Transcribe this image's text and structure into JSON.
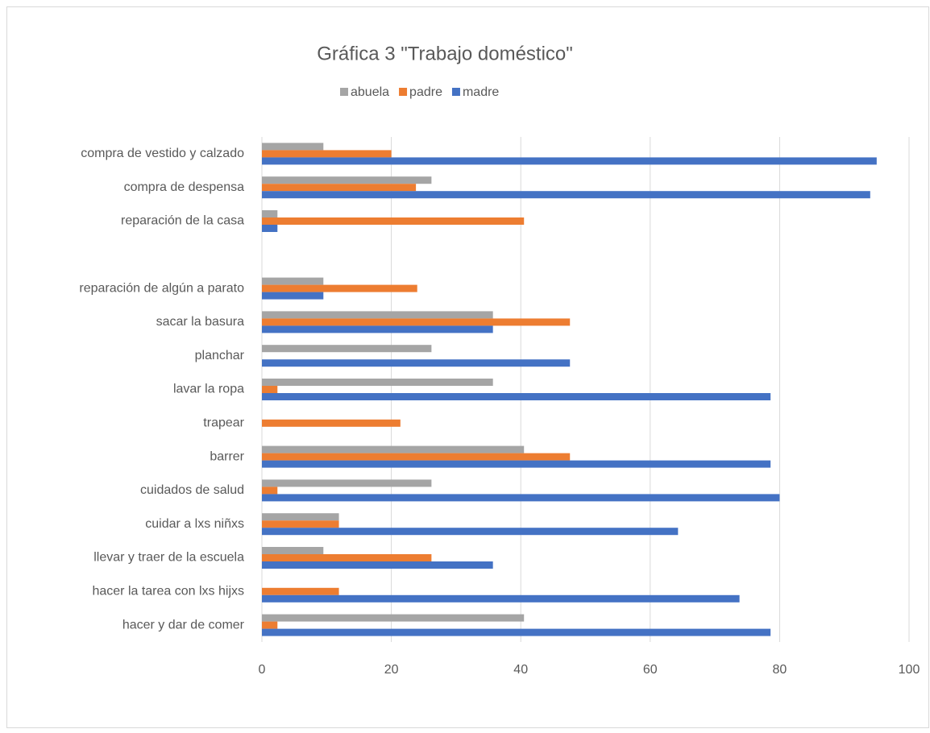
{
  "chart_data": {
    "type": "hbar",
    "title": "Gráfica 3 \"Trabajo doméstico\"",
    "categories": [
      "compra de vestido y calzado",
      "compra de despensa",
      "reparación de la casa",
      null,
      "reparación de algún a parato",
      "sacar la basura",
      "planchar",
      "lavar la ropa",
      "trapear",
      "barrer ",
      "cuidados de salud",
      "cuidar a lxs niñxs",
      "llevar y traer de la escuela",
      "hacer la tarea con lxs hijxs",
      "hacer y dar de comer"
    ],
    "series": [
      {
        "name": "abuela",
        "color": "#a5a5a5",
        "values": [
          9.5,
          26.2,
          2.4,
          null,
          9.5,
          35.7,
          26.2,
          35.7,
          0,
          40.5,
          26.2,
          11.9,
          9.5,
          0,
          40.5
        ]
      },
      {
        "name": "padre",
        "color": "#ed7d31",
        "values": [
          20,
          23.8,
          40.5,
          null,
          24,
          47.6,
          0,
          2.4,
          21.4,
          47.6,
          2.4,
          11.9,
          26.2,
          11.9,
          2.4
        ]
      },
      {
        "name": "madre",
        "color": "#4472c4",
        "values": [
          95,
          94,
          2.4,
          null,
          9.5,
          35.7,
          47.6,
          78.6,
          0,
          78.6,
          80,
          64.3,
          35.7,
          73.8,
          78.6
        ]
      }
    ],
    "xlim": [
      0,
      100
    ],
    "xticks": [
      0,
      20,
      40,
      60,
      80,
      100
    ],
    "grid": true,
    "legend": "top"
  }
}
